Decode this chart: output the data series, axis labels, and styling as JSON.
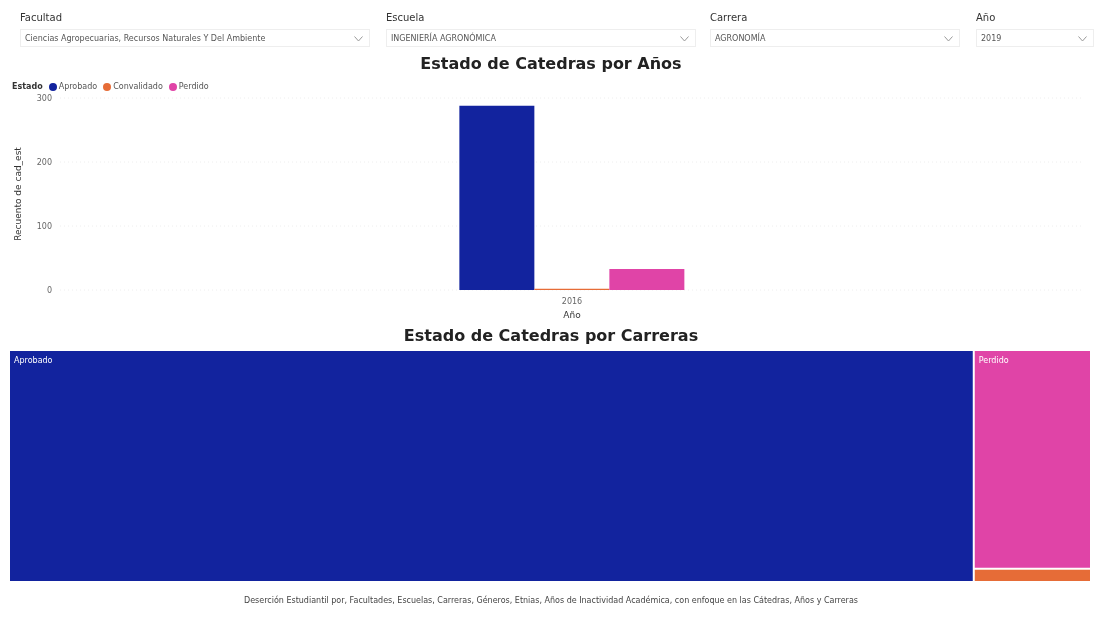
{
  "chart_data": [
    {
      "type": "other",
      "annotations": [
        "Facultad",
        "Ciencias Agropecuarias, Recursos Naturales Y Del Ambiente",
        "Escuela",
        "INGENIERÍA AGRONÓMICA",
        "Carrera",
        "AGRONOMÍA",
        "Año",
        "2019"
      ]
    },
    {
      "type": "bar",
      "title": "Estado de Catedras por Años",
      "xlabel": "Año",
      "ylabel": "Recuento de cad_est",
      "legend_title": "Estado",
      "legend": "top left",
      "categories": [
        "2016"
      ],
      "series": [
        {
          "name": "Aprobado",
          "color": "#12239e",
          "values": [
            288
          ]
        },
        {
          "name": "Convalidado",
          "color": "#e66c37",
          "values": [
            2
          ]
        },
        {
          "name": "Perdido",
          "color": "#e044a7",
          "values": [
            33
          ]
        }
      ],
      "ylim": [
        0,
        300
      ],
      "yticks": [
        0,
        100,
        200,
        300
      ],
      "grid": "y"
    },
    {
      "type": "other",
      "title": "Estado de Catedras por Carreras",
      "categories": [
        "Aprobado",
        null,
        "Perdido"
      ],
      "colors": [
        "#12239e",
        "#e66c37",
        "#e044a7"
      ],
      "annotations": [
        "Deserción Estudiantil por, Facultades, Escuelas, Carreras, Géneros, Etnias, Años de Inactividad Académica, con enfoque en las Cátedras, Años y Carreras"
      ]
    }
  ]
}
